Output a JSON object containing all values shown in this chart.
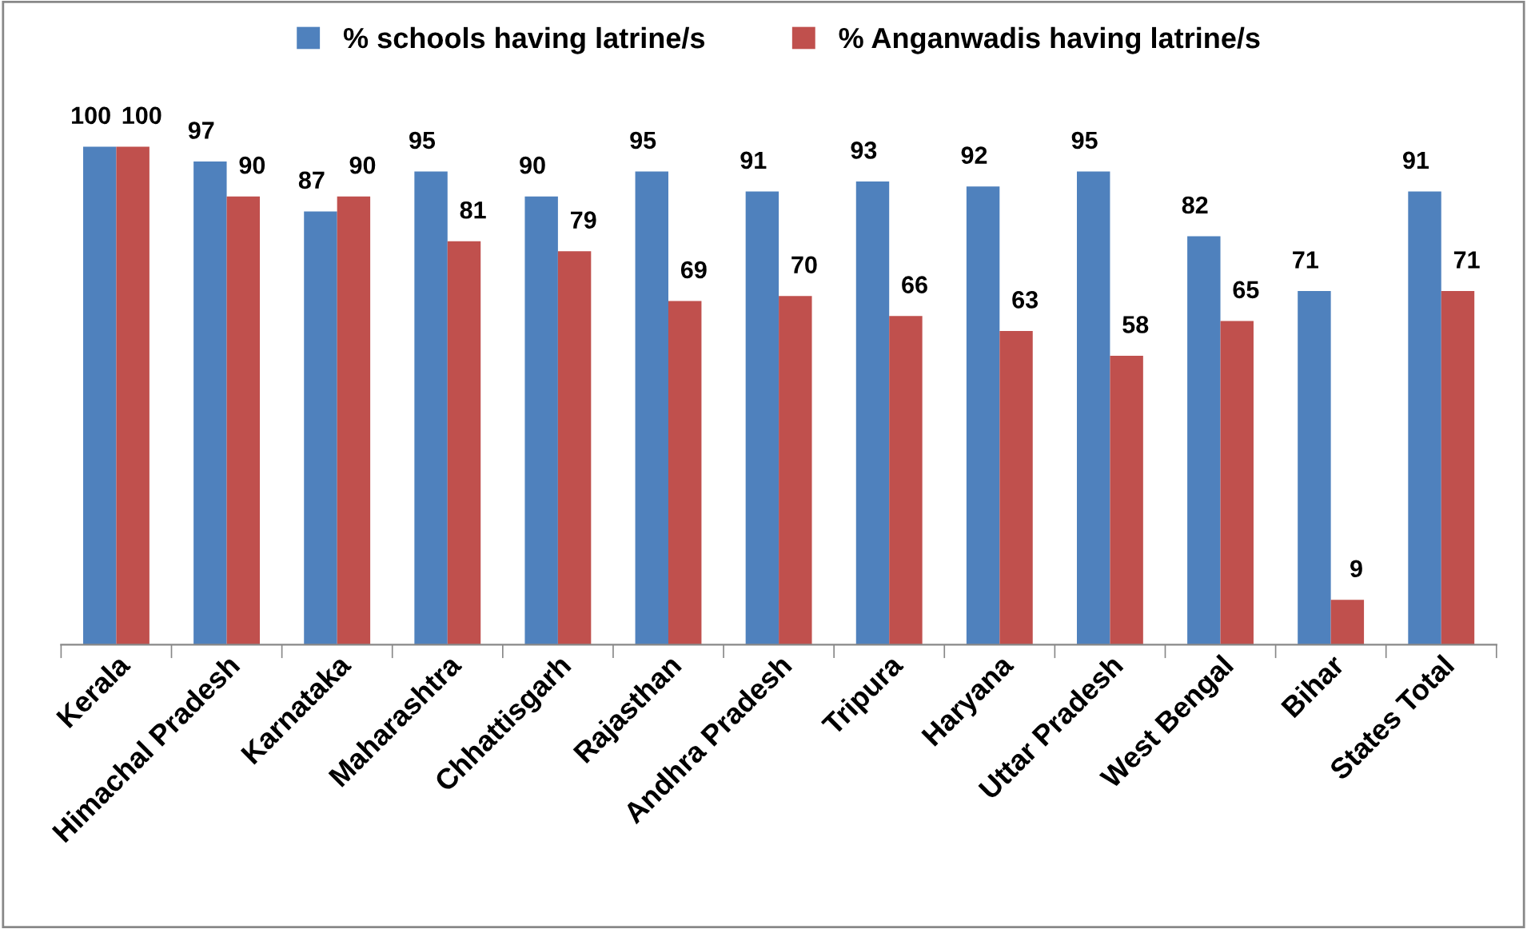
{
  "chart_data": {
    "type": "bar",
    "categories": [
      "Kerala",
      "Himachal Pradesh",
      "Karnataka",
      "Maharashtra",
      "Chhattisgarh",
      "Rajasthan",
      "Andhra Pradesh",
      "Tripura",
      "Haryana",
      "Uttar Pradesh",
      "West Bengal",
      "Bihar",
      "States Total"
    ],
    "series": [
      {
        "name": "% schools having latrine/s",
        "color": "#4f81bd",
        "values": [
          100,
          97,
          87,
          95,
          90,
          95,
          91,
          93,
          92,
          95,
          82,
          71,
          91
        ]
      },
      {
        "name": "% Anganwadis having latrine/s",
        "color": "#c0504d",
        "values": [
          100,
          90,
          90,
          81,
          79,
          69,
          70,
          66,
          63,
          58,
          65,
          9,
          71
        ]
      }
    ],
    "data_labels": true,
    "legend": "top",
    "grid": false,
    "tick_labels": "x"
  }
}
